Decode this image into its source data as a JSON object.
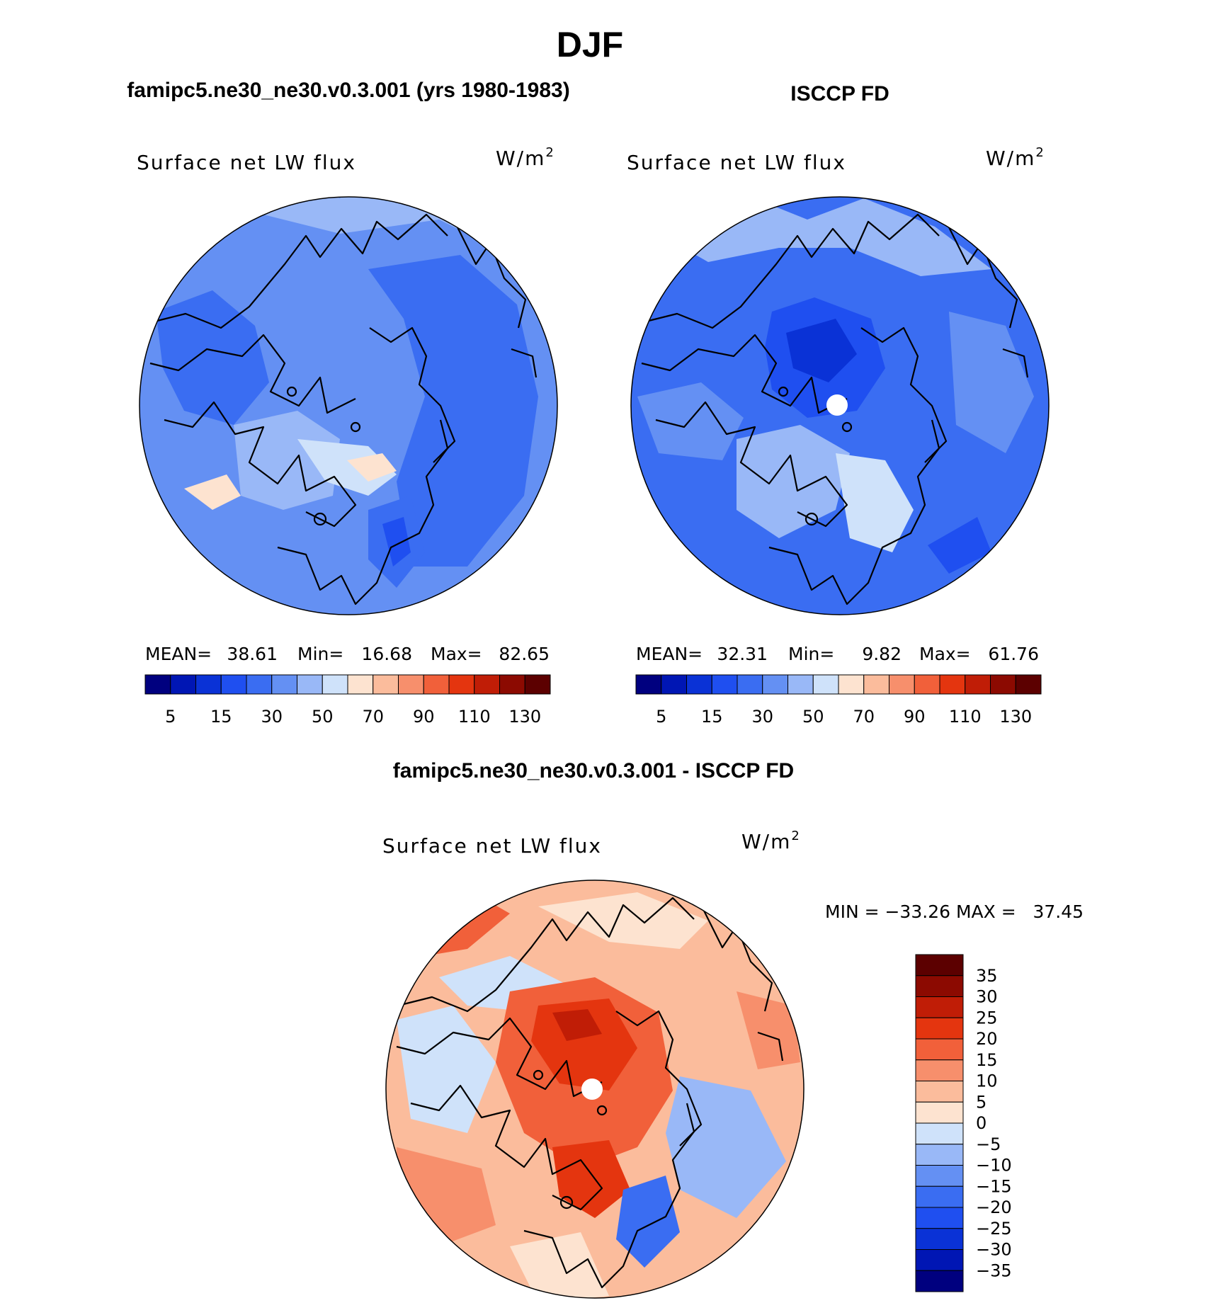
{
  "figure_title": "DJF",
  "colors": {
    "abs_scale": [
      "#00007f",
      "#0016b4",
      "#0a32d6",
      "#1f4ff0",
      "#3a6df2",
      "#6490f3",
      "#99b8f7",
      "#cfe2fa",
      "#fde3d0",
      "#fbbc9c",
      "#f78f6c",
      "#f1603a",
      "#e4350f",
      "#c01d06",
      "#8c0a01",
      "#5c0000"
    ],
    "diff_scale": [
      "#00007f",
      "#0016b4",
      "#0a32d6",
      "#1f4ff0",
      "#3a6df2",
      "#6490f3",
      "#99b8f7",
      "#cfe2fa",
      "#fde3d0",
      "#fbbc9c",
      "#f78f6c",
      "#f1603a",
      "#e4350f",
      "#c01d06",
      "#8c0a01",
      "#5c0000"
    ]
  },
  "panels": [
    {
      "header": "famipc5.ne30_ne30.v0.3.001 (yrs 1980-1983)",
      "variable": "Surface net LW flux",
      "units": "W/m",
      "units_sup": "2",
      "mean_label": "MEAN=",
      "mean_value": "38.61",
      "min_label": "Min=",
      "min_value": "16.68",
      "max_label": "Max=",
      "max_value": "82.65",
      "colorbar_ticks": [
        "5",
        "15",
        "30",
        "50",
        "70",
        "90",
        "110",
        "130"
      ]
    },
    {
      "header": "ISCCP FD",
      "variable": "Surface net LW flux",
      "units": "W/m",
      "units_sup": "2",
      "mean_label": "MEAN=",
      "mean_value": "32.31",
      "min_label": "Min=",
      "min_value": "9.82",
      "max_label": "Max=",
      "max_value": "61.76",
      "colorbar_ticks": [
        "5",
        "15",
        "30",
        "50",
        "70",
        "90",
        "110",
        "130"
      ]
    }
  ],
  "difference": {
    "header": "famipc5.ne30_ne30.v0.3.001 - ISCCP FD",
    "variable": "Surface net LW flux",
    "units": "W/m",
    "units_sup": "2",
    "minmax_text": "MIN = −33.26 MAX =   37.45",
    "colorbar_ticks": [
      "35",
      "30",
      "25",
      "20",
      "15",
      "10",
      "5",
      "0",
      "−5",
      "−10",
      "−15",
      "−20",
      "−25",
      "−30",
      "−35"
    ]
  },
  "chart_data": [
    {
      "type": "heatmap",
      "projection": "north polar stereographic",
      "title": "famipc5.ne30_ne30.v0.3.001 (yrs 1980-1983)",
      "variable": "Surface net LW flux",
      "units": "W/m2",
      "mean": 38.61,
      "min": 16.68,
      "max": 82.65,
      "contour_levels": [
        5,
        10,
        15,
        20,
        30,
        40,
        50,
        60,
        70,
        80,
        90,
        100,
        110,
        120,
        130
      ]
    },
    {
      "type": "heatmap",
      "projection": "north polar stereographic",
      "title": "ISCCP FD",
      "variable": "Surface net LW flux",
      "units": "W/m2",
      "mean": 32.31,
      "min": 9.82,
      "max": 61.76,
      "contour_levels": [
        5,
        10,
        15,
        20,
        30,
        40,
        50,
        60,
        70,
        80,
        90,
        100,
        110,
        120,
        130
      ]
    },
    {
      "type": "heatmap",
      "projection": "north polar stereographic",
      "title": "famipc5.ne30_ne30.v0.3.001 - ISCCP FD",
      "variable": "Surface net LW flux",
      "units": "W/m2",
      "min": -33.26,
      "max": 37.45,
      "contour_levels": [
        -35,
        -30,
        -25,
        -20,
        -15,
        -10,
        -5,
        0,
        5,
        10,
        15,
        20,
        25,
        30,
        35
      ]
    }
  ]
}
